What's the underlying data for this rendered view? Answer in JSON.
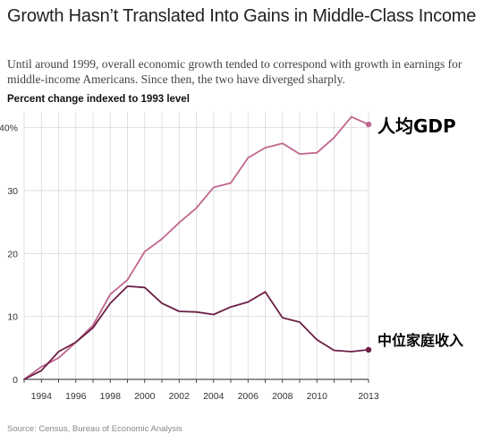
{
  "title": "Growth Hasn’t Translated Into Gains in Middle-Class Income",
  "subtitle": "Until around 1999, overall economic growth tended to correspond with growth in earnings for middle-income Americans. Since then, the two have diverged sharply.",
  "axis_caption": "Percent change indexed to 1993 level",
  "source": "Source: Census, Bureau of Economic Analysis",
  "colors": {
    "gdp": "#c0668e",
    "income": "#6b1f45",
    "grid": "#d9d9d9",
    "axis": "#222222"
  },
  "chart_data": {
    "type": "line",
    "title": "Growth Hasn’t Translated Into Gains in Middle-Class Income",
    "ylabel": "Percent change indexed to 1993 level",
    "xlabel": "",
    "x": [
      1993,
      1994,
      1995,
      1996,
      1997,
      1998,
      1999,
      2000,
      2001,
      2002,
      2003,
      2004,
      2005,
      2006,
      2007,
      2008,
      2009,
      2010,
      2011,
      2012,
      2013
    ],
    "xticks": [
      {
        "value": 1994,
        "label": "1994"
      },
      {
        "value": 1996,
        "label": "1996"
      },
      {
        "value": 1998,
        "label": "1998"
      },
      {
        "value": 2000,
        "label": "2000"
      },
      {
        "value": 2002,
        "label": "2002"
      },
      {
        "value": 2004,
        "label": "2004"
      },
      {
        "value": 2006,
        "label": "2006"
      },
      {
        "value": 2008,
        "label": "2008"
      },
      {
        "value": 2010,
        "label": "2010"
      },
      {
        "value": 2013,
        "label": "2013"
      }
    ],
    "yticks": [
      {
        "value": 0,
        "label": "0"
      },
      {
        "value": 10,
        "label": "10"
      },
      {
        "value": 20,
        "label": "20"
      },
      {
        "value": 30,
        "label": "30"
      },
      {
        "value": 40,
        "label": "40%"
      }
    ],
    "xlim": [
      1993,
      2013
    ],
    "ylim": [
      0,
      42.5
    ],
    "grid": true,
    "series": [
      {
        "key": "gdp",
        "name": "人均GDP",
        "values": [
          0,
          2.0,
          3.4,
          5.9,
          8.6,
          13.5,
          15.8,
          20.3,
          22.3,
          24.9,
          27.2,
          30.5,
          31.2,
          35.2,
          36.8,
          37.5,
          35.8,
          36.0,
          38.4,
          41.7,
          40.5
        ]
      },
      {
        "key": "income",
        "name": "中位家庭收入",
        "values": [
          0,
          1.4,
          4.4,
          5.9,
          8.2,
          12.1,
          14.8,
          14.6,
          12.1,
          10.8,
          10.7,
          10.3,
          11.5,
          12.3,
          13.9,
          9.8,
          9.1,
          6.3,
          4.6,
          4.4,
          4.7
        ]
      }
    ]
  }
}
